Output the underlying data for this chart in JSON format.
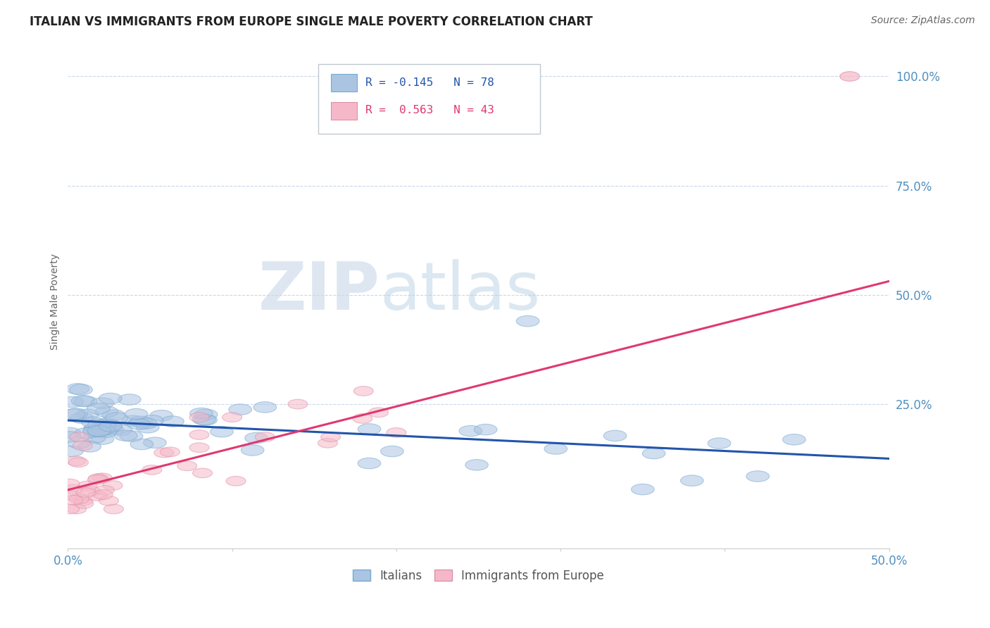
{
  "title": "ITALIAN VS IMMIGRANTS FROM EUROPE SINGLE MALE POVERTY CORRELATION CHART",
  "source": "Source: ZipAtlas.com",
  "ylabel": "Single Male Poverty",
  "watermark_zip": "ZIP",
  "watermark_atlas": "atlas",
  "xlim": [
    0.0,
    0.5
  ],
  "ylim": [
    -0.08,
    1.05
  ],
  "series": [
    {
      "name": "Italians",
      "R": -0.145,
      "N": 78,
      "color": "#aac4e2",
      "edge_color": "#7aaad0",
      "line_color": "#2255aa"
    },
    {
      "name": "Immigrants from Europe",
      "R": 0.563,
      "N": 43,
      "color": "#f5b8c8",
      "edge_color": "#e090a8",
      "line_color": "#e03870"
    }
  ],
  "legend_label_1": "R = -0.145   N = 78",
  "legend_label_2": "R =  0.563   N = 43",
  "grid_color": "#c8d8ea",
  "bg_color": "#ffffff",
  "title_fontsize": 12,
  "tick_label_color": "#5090c0",
  "ylabel_color": "#666666"
}
